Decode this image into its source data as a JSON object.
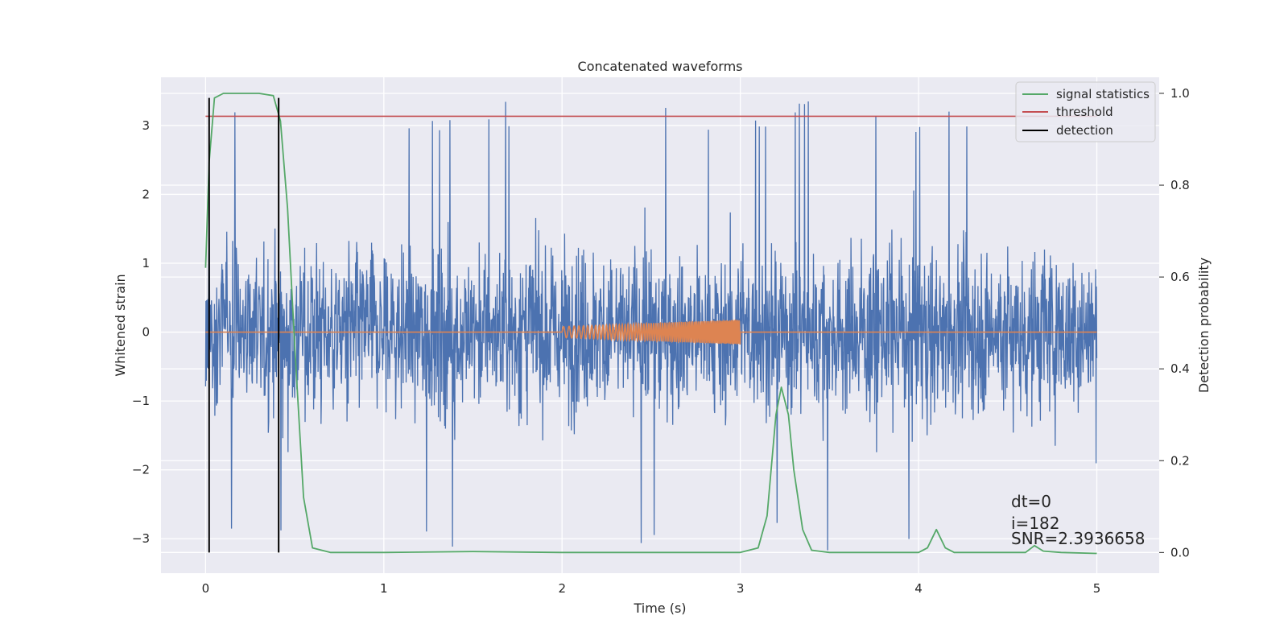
{
  "chart_data": {
    "type": "line",
    "title": "Concatenated waveforms",
    "xlabel": "Time (s)",
    "ylabel": "Whitened strain",
    "y2label": "Detection probability",
    "xlim": [
      -0.25,
      5.35
    ],
    "ylim": [
      -3.5,
      3.7
    ],
    "y2lim": [
      -0.045,
      1.035
    ],
    "x_ticks": [
      0,
      1,
      2,
      3,
      4,
      5
    ],
    "y_ticks": [
      -3,
      -2,
      -1,
      0,
      1,
      2,
      3
    ],
    "y2_ticks": [
      0.0,
      0.2,
      0.4,
      0.6,
      0.8,
      1.0
    ],
    "grid": true,
    "legend_position": "top-right",
    "colors": {
      "background": "#eaeaf2",
      "grid": "#ffffff",
      "strain": "#4c72b0",
      "template": "#dd8452",
      "signal_statistics": "#55a868",
      "threshold": "#c44e52",
      "detection": "#000000"
    },
    "series": [
      {
        "name": "",
        "axis": "left",
        "kind": "strain_noise",
        "x_range": [
          0,
          5
        ],
        "typical_amplitude": 0.85,
        "max": 3.4,
        "min": -3.2
      },
      {
        "name": "",
        "axis": "left",
        "kind": "chirp_template",
        "x_range": [
          2,
          3
        ],
        "amplitude_start": 0.08,
        "amplitude_end": 0.18
      },
      {
        "name": "signal statistics",
        "axis": "right",
        "x": [
          0.0,
          0.02,
          0.05,
          0.1,
          0.2,
          0.3,
          0.38,
          0.42,
          0.46,
          0.5,
          0.55,
          0.6,
          0.7,
          1.0,
          1.5,
          2.0,
          2.5,
          3.0,
          3.1,
          3.15,
          3.2,
          3.23,
          3.27,
          3.3,
          3.35,
          3.4,
          3.5,
          4.0,
          4.05,
          4.1,
          4.15,
          4.2,
          4.5,
          4.6,
          4.65,
          4.7,
          4.8,
          5.0
        ],
        "values": [
          0.62,
          0.85,
          0.99,
          1.0,
          1.0,
          1.0,
          0.995,
          0.94,
          0.75,
          0.45,
          0.12,
          0.01,
          0.0,
          0.0,
          0.002,
          0.0,
          0.0,
          0.0,
          0.01,
          0.08,
          0.3,
          0.36,
          0.3,
          0.18,
          0.05,
          0.005,
          0.0,
          0.0,
          0.01,
          0.05,
          0.01,
          0.0,
          0.0,
          0.0,
          0.015,
          0.003,
          0.0,
          -0.002
        ]
      },
      {
        "name": "threshold",
        "axis": "right",
        "value": 0.95,
        "x_range": [
          0,
          5
        ]
      },
      {
        "name": "detection",
        "axis": "left",
        "x": [
          0.02,
          0.41
        ],
        "y_range": [
          -3.2,
          3.4
        ]
      }
    ],
    "annotations": [
      "dt=0",
      "i=182",
      "SNR=2.3936658"
    ]
  }
}
